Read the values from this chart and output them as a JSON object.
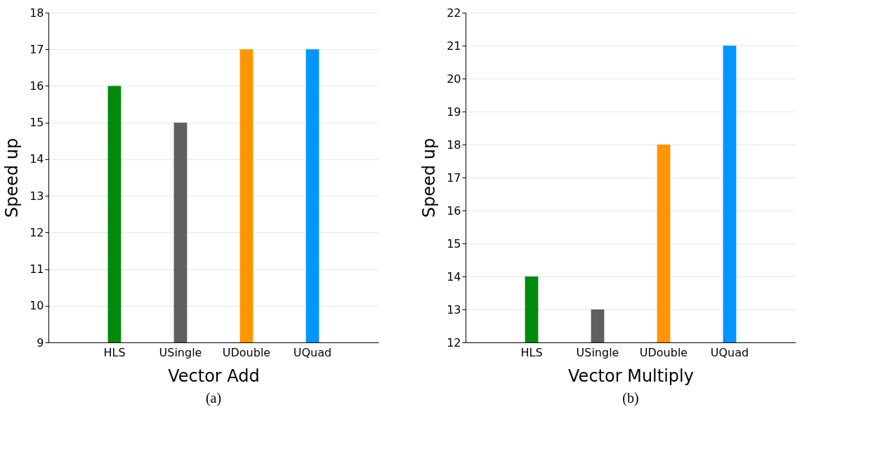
{
  "chart_data": [
    {
      "type": "bar",
      "categories": [
        "HLS",
        "USingle",
        "UDouble",
        "UQuad"
      ],
      "values": [
        16,
        15,
        17,
        17
      ],
      "colors": [
        "#008a0e",
        "#5f5f5f",
        "#ff9500",
        "#0096ff"
      ],
      "xlabel": "Vector Add",
      "ylabel": "Speed up",
      "ylim": [
        9,
        18
      ],
      "yticks": [
        9,
        10,
        11,
        12,
        13,
        14,
        15,
        16,
        17,
        18
      ],
      "grid": "y",
      "annotations": [
        "(a)"
      ]
    },
    {
      "type": "bar",
      "categories": [
        "HLS",
        "USingle",
        "UDouble",
        "UQuad"
      ],
      "values": [
        14,
        13,
        18,
        21
      ],
      "colors": [
        "#008a0e",
        "#5f5f5f",
        "#ff9500",
        "#0096ff"
      ],
      "xlabel": "Vector Multiply",
      "ylabel": "Speed up",
      "ylim": [
        12,
        22
      ],
      "yticks": [
        12,
        13,
        14,
        15,
        16,
        17,
        18,
        19,
        20,
        21,
        22
      ],
      "grid": "y",
      "annotations": [
        "(b)"
      ]
    }
  ]
}
